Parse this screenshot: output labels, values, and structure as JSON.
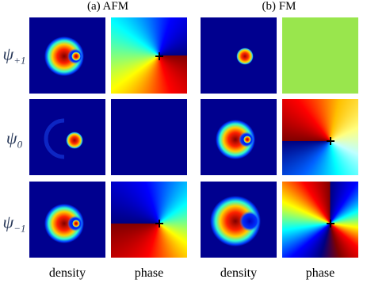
{
  "panels": [
    {
      "title": "(a) AFM"
    },
    {
      "title": "(b) FM"
    }
  ],
  "rows": [
    {
      "symbol": "ψ",
      "sub": "+1"
    },
    {
      "symbol": "ψ",
      "sub": "0"
    },
    {
      "symbol": "ψ",
      "sub": "−1"
    }
  ],
  "columns": [
    "density",
    "phase",
    "density",
    "phase"
  ]
}
